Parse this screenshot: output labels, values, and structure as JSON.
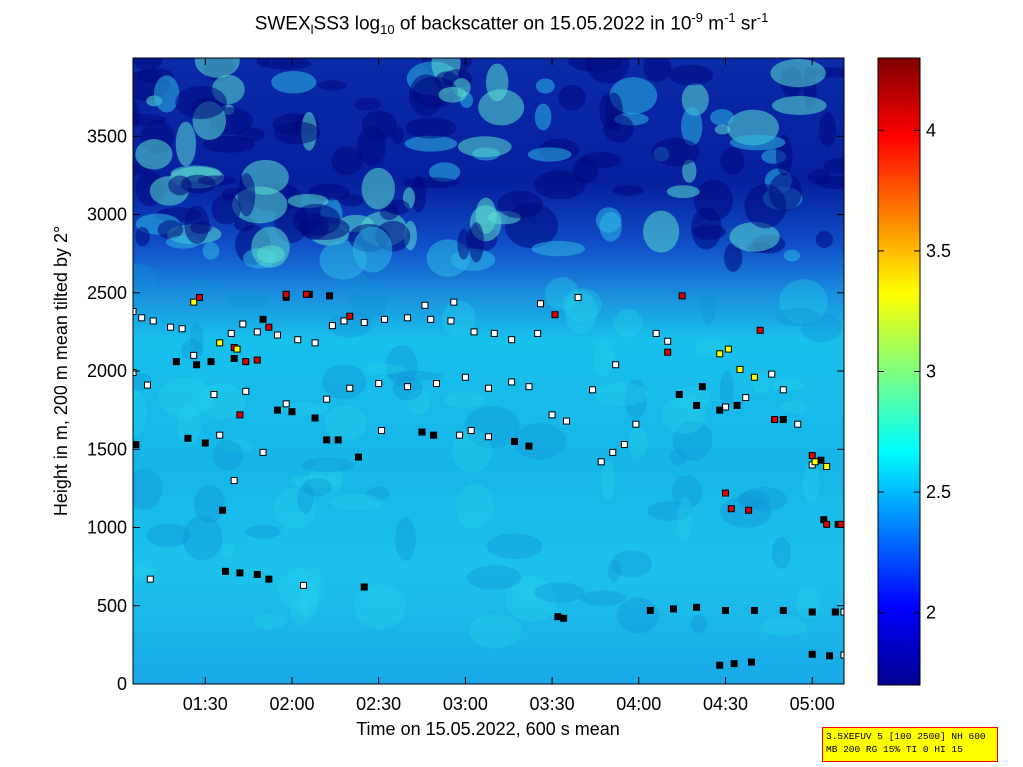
{
  "title": {
    "prefix": "SWEX",
    "sub1": "l",
    "mid": "SS3 log",
    "sub2": "10",
    "text": " of backscatter on 15.05.2022 in 10",
    "sup1": "-9",
    "unit1": " m",
    "sup2": "-1",
    "unit2": " sr",
    "sup3": "-1"
  },
  "info_box": {
    "line1": "3.5XEFUV 5 [100 2500] NH 600",
    "line2": "MB 200 RG 15% TI 0 HI 15"
  },
  "colors": {
    "background_low": "#00008b",
    "background_cyan": "#1fd6e6",
    "marker_red": "#dd0000",
    "marker_yellow": "#ffff00",
    "marker_white": "#ffffff",
    "marker_black": "#000000"
  },
  "chart_data": {
    "type": "heatmap",
    "title": "SWEX_lSS3 log10 of backscatter on 15.05.2022 in 10^-9 m^-1 sr^-1",
    "xlabel": "Time on 15.05.2022, 600 s mean",
    "ylabel": "Height in m, 200 m mean tilted by 2°",
    "x_ticks": [
      "01:30",
      "02:00",
      "02:30",
      "03:00",
      "03:30",
      "04:00",
      "04:30",
      "05:00"
    ],
    "x_tick_minutes": [
      90,
      120,
      150,
      180,
      210,
      240,
      270,
      300
    ],
    "xlim_minutes": [
      65,
      311
    ],
    "y_ticks": [
      0,
      500,
      1000,
      1500,
      2000,
      2500,
      3000,
      3500
    ],
    "ylim": [
      0,
      4000
    ],
    "colorbar": {
      "ticks": [
        2,
        2.5,
        3,
        3.5,
        4
      ],
      "range": [
        1.7,
        4.3
      ],
      "colormap": "jet"
    },
    "grid": false,
    "legend": "none",
    "marker_series": [
      {
        "color": "white",
        "points": [
          [
            65,
            2380
          ],
          [
            68,
            2340
          ],
          [
            72,
            2320
          ],
          [
            78,
            2280
          ],
          [
            82,
            2270
          ],
          [
            99,
            2240
          ],
          [
            103,
            2300
          ],
          [
            108,
            2250
          ],
          [
            115,
            2230
          ],
          [
            122,
            2200
          ],
          [
            128,
            2180
          ],
          [
            134,
            2290
          ],
          [
            138,
            2320
          ],
          [
            145,
            2310
          ],
          [
            152,
            2330
          ],
          [
            160,
            2340
          ],
          [
            168,
            2330
          ],
          [
            175,
            2320
          ],
          [
            183,
            2250
          ],
          [
            190,
            2240
          ],
          [
            196,
            2200
          ],
          [
            205,
            2240
          ],
          [
            65,
            1990
          ],
          [
            70,
            1910
          ],
          [
            86,
            2100
          ],
          [
            93,
            1850
          ],
          [
            104,
            1870
          ],
          [
            118,
            1790
          ],
          [
            132,
            1820
          ],
          [
            140,
            1890
          ],
          [
            150,
            1920
          ],
          [
            160,
            1900
          ],
          [
            170,
            1920
          ],
          [
            180,
            1960
          ],
          [
            188,
            1890
          ],
          [
            196,
            1930
          ],
          [
            202,
            1900
          ],
          [
            210,
            1720
          ],
          [
            215,
            1680
          ],
          [
            224,
            1880
          ],
          [
            232,
            2040
          ],
          [
            239,
            1660
          ],
          [
            246,
            2240
          ],
          [
            250,
            2190
          ],
          [
            270,
            1770
          ],
          [
            277,
            1830
          ],
          [
            287,
            1690
          ],
          [
            295,
            1660
          ],
          [
            64,
            680
          ],
          [
            71,
            670
          ],
          [
            124,
            630
          ],
          [
            227,
            1420
          ],
          [
            231,
            1480
          ],
          [
            235,
            1530
          ],
          [
            182,
            1620
          ],
          [
            188,
            1580
          ],
          [
            178,
            1590
          ],
          [
            95,
            1590
          ],
          [
            100,
            1300
          ],
          [
            110,
            1480
          ],
          [
            206,
            2430
          ],
          [
            219,
            2470
          ],
          [
            166,
            2420
          ],
          [
            176,
            2440
          ],
          [
            151,
            1620
          ],
          [
            286,
            1980
          ],
          [
            290,
            1880
          ],
          [
            300,
            1400
          ],
          [
            311,
            460
          ],
          [
            311,
            185
          ]
        ]
      },
      {
        "color": "black",
        "points": [
          [
            66,
            1530
          ],
          [
            84,
            1570
          ],
          [
            90,
            1540
          ],
          [
            96,
            1110
          ],
          [
            97,
            720
          ],
          [
            102,
            710
          ],
          [
            108,
            700
          ],
          [
            112,
            670
          ],
          [
            115,
            1750
          ],
          [
            120,
            1740
          ],
          [
            128,
            1700
          ],
          [
            132,
            1560
          ],
          [
            136,
            1560
          ],
          [
            143,
            1450
          ],
          [
            145,
            620
          ],
          [
            212,
            430
          ],
          [
            214,
            420
          ],
          [
            244,
            470
          ],
          [
            252,
            480
          ],
          [
            260,
            490
          ],
          [
            270,
            470
          ],
          [
            280,
            470
          ],
          [
            290,
            470
          ],
          [
            300,
            460
          ],
          [
            308,
            460
          ],
          [
            268,
            120
          ],
          [
            273,
            130
          ],
          [
            279,
            140
          ],
          [
            300,
            190
          ],
          [
            306,
            180
          ],
          [
            268,
            1750
          ],
          [
            260,
            1780
          ],
          [
            254,
            1850
          ],
          [
            262,
            1900
          ],
          [
            274,
            1780
          ],
          [
            290,
            1690
          ],
          [
            303,
            1430
          ],
          [
            304,
            1050
          ],
          [
            309,
            1020
          ],
          [
            165,
            1610
          ],
          [
            169,
            1590
          ],
          [
            197,
            1550
          ],
          [
            202,
            1520
          ],
          [
            110,
            2330
          ],
          [
            118,
            2470
          ],
          [
            126,
            2490
          ],
          [
            133,
            2480
          ],
          [
            80,
            2060
          ],
          [
            87,
            2040
          ],
          [
            92,
            2060
          ],
          [
            100,
            2080
          ]
        ]
      },
      {
        "color": "red",
        "points": [
          [
            88,
            2470
          ],
          [
            102,
            1720
          ],
          [
            100,
            2150
          ],
          [
            108,
            2070
          ],
          [
            112,
            2280
          ],
          [
            118,
            2490
          ],
          [
            125,
            2490
          ],
          [
            140,
            2350
          ],
          [
            211,
            2360
          ],
          [
            250,
            2120
          ],
          [
            255,
            2480
          ],
          [
            270,
            1220
          ],
          [
            272,
            1120
          ],
          [
            278,
            1110
          ],
          [
            282,
            2260
          ],
          [
            287,
            1690
          ],
          [
            300,
            1460
          ],
          [
            305,
            1020
          ],
          [
            310,
            1020
          ],
          [
            104,
            2060
          ]
        ]
      },
      {
        "color": "yellow",
        "points": [
          [
            86,
            2440
          ],
          [
            101,
            2140
          ],
          [
            268,
            2110
          ],
          [
            271,
            2140
          ],
          [
            275,
            2010
          ],
          [
            280,
            1960
          ],
          [
            301,
            1420
          ],
          [
            305,
            1390
          ],
          [
            95,
            2180
          ]
        ]
      }
    ]
  }
}
